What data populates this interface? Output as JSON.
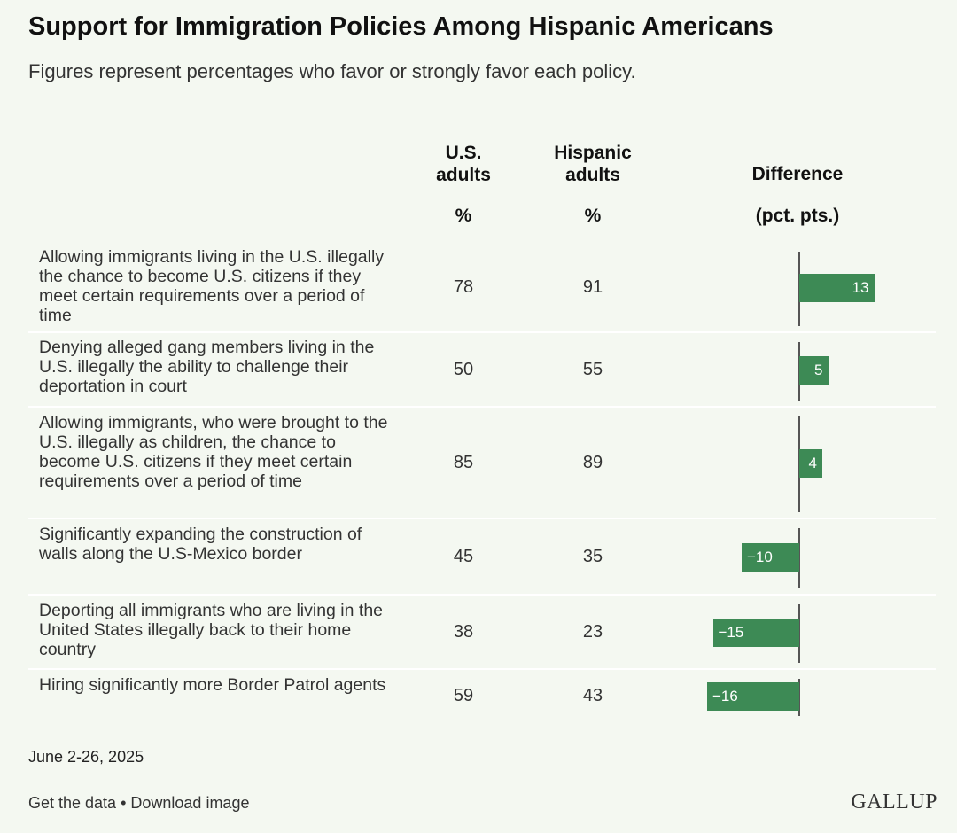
{
  "title": "Support for Immigration Policies Among Hispanic Americans",
  "subtitle": "Figures represent percentages who favor or strongly favor each policy.",
  "columns": {
    "us_adults": "U.S. adults",
    "hispanic_adults": "Hispanic adults",
    "difference": "Difference",
    "pct_unit": "%",
    "diff_unit": "(pct. pts.)"
  },
  "chart_data": {
    "type": "table",
    "columns": [
      "U.S. adults %",
      "Hispanic adults %",
      "Difference (pct. pts.)"
    ],
    "rows": [
      {
        "policy": "Allowing immigrants living in the U.S. illegally the chance to become U.S. citizens if they meet certain requirements over a period of time",
        "us": 78,
        "hispanic": 91,
        "difference": 13,
        "difference_label": "13"
      },
      {
        "policy": "Denying alleged gang members living in the U.S. illegally the ability to challenge their deportation in court",
        "us": 50,
        "hispanic": 55,
        "difference": 5,
        "difference_label": "5"
      },
      {
        "policy": "Allowing immigrants, who were brought to the U.S. illegally as children, the chance to become U.S. citizens if they meet certain requirements over a period of time",
        "us": 85,
        "hispanic": 89,
        "difference": 4,
        "difference_label": "4"
      },
      {
        "policy": "Significantly expanding the construction of walls along the U.S-Mexico border",
        "us": 45,
        "hispanic": 35,
        "difference": -10,
        "difference_label": "−10"
      },
      {
        "policy": "Deporting all immigrants who are living in the United States illegally back to their home country",
        "us": 38,
        "hispanic": 23,
        "difference": -15,
        "difference_label": "−15"
      },
      {
        "policy": "Hiring significantly more Border Patrol agents",
        "us": 59,
        "hispanic": 43,
        "difference": -16,
        "difference_label": "−16"
      }
    ],
    "bar_color": "#3d8a55"
  },
  "date": "June 2-26, 2025",
  "footer": {
    "get_data": "Get the data",
    "separator": "•",
    "download": "Download image"
  },
  "logo": "GALLUP"
}
